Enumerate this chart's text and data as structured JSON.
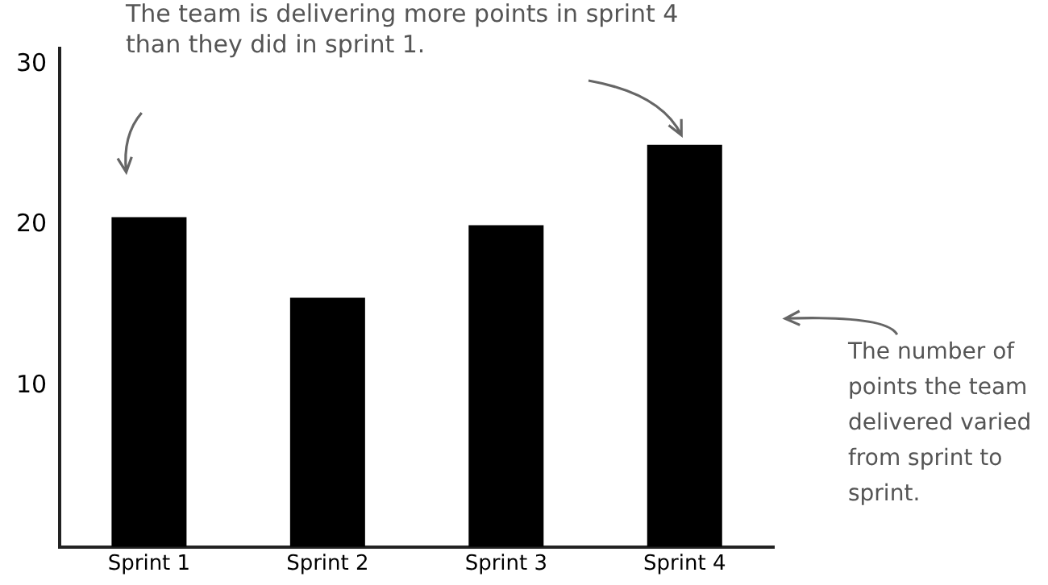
{
  "chart_data": {
    "type": "bar",
    "categories": [
      "Sprint 1",
      "Sprint 2",
      "Sprint 3",
      "Sprint 4"
    ],
    "values": [
      20.5,
      15.5,
      20,
      25
    ],
    "color": "#000000",
    "ylim": [
      0,
      31
    ],
    "yticks": [
      10,
      20,
      30
    ],
    "grid": false,
    "legend": false,
    "annotations": [
      "The team is delivering more points in sprint 4 than they did in sprint 1.",
      "The number of points the team delivered varied from sprint to sprint."
    ]
  }
}
